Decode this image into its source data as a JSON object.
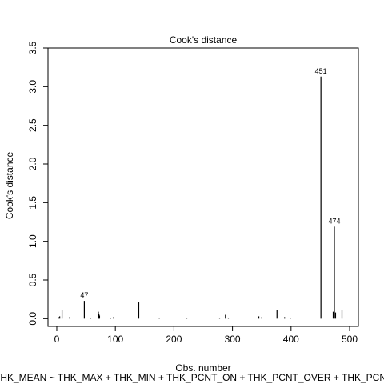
{
  "chart_data": {
    "type": "bar",
    "title": "Cook's distance",
    "xlabel": "Obs. number",
    "ylabel": "Cook's distance",
    "subtitle": "THK_MEAN ~ THK_MAX + THK_MIN + THK_PCNT_ON + THK_PCNT_OVER + THK_PCN",
    "xlim": [
      -15,
      515
    ],
    "ylim": [
      -0.1,
      3.5
    ],
    "x_ticks": [
      0,
      100,
      200,
      300,
      400,
      500
    ],
    "y_ticks": [
      0.0,
      0.5,
      1.0,
      1.5,
      2.0,
      2.5,
      3.0,
      3.5
    ],
    "y_tick_labels": [
      "0.0",
      "0.5",
      "1.0",
      "1.5",
      "2.0",
      "2.5",
      "3.0",
      "3.5"
    ],
    "grid": false,
    "points": [
      {
        "x": 3,
        "y": 0.02
      },
      {
        "x": 5,
        "y": 0.03
      },
      {
        "x": 9,
        "y": 0.11
      },
      {
        "x": 22,
        "y": 0.02
      },
      {
        "x": 47,
        "y": 0.23
      },
      {
        "x": 58,
        "y": 0.01
      },
      {
        "x": 71,
        "y": 0.09
      },
      {
        "x": 72,
        "y": 0.06
      },
      {
        "x": 73,
        "y": 0.04
      },
      {
        "x": 92,
        "y": 0.01
      },
      {
        "x": 97,
        "y": 0.02
      },
      {
        "x": 140,
        "y": 0.21
      },
      {
        "x": 175,
        "y": 0.01
      },
      {
        "x": 222,
        "y": 0.01
      },
      {
        "x": 278,
        "y": 0.01
      },
      {
        "x": 288,
        "y": 0.05
      },
      {
        "x": 293,
        "y": 0.01
      },
      {
        "x": 345,
        "y": 0.03
      },
      {
        "x": 350,
        "y": 0.02
      },
      {
        "x": 376,
        "y": 0.11
      },
      {
        "x": 389,
        "y": 0.02
      },
      {
        "x": 399,
        "y": 0.01
      },
      {
        "x": 451,
        "y": 3.13
      },
      {
        "x": 472,
        "y": 0.09
      },
      {
        "x": 474,
        "y": 1.19
      },
      {
        "x": 476,
        "y": 0.08
      },
      {
        "x": 487,
        "y": 0.11
      }
    ],
    "labeled_points": [
      {
        "label": "47",
        "x": 47,
        "y": 0.23
      },
      {
        "label": "451",
        "x": 451,
        "y": 3.13
      },
      {
        "label": "474",
        "x": 474,
        "y": 1.19
      }
    ]
  }
}
